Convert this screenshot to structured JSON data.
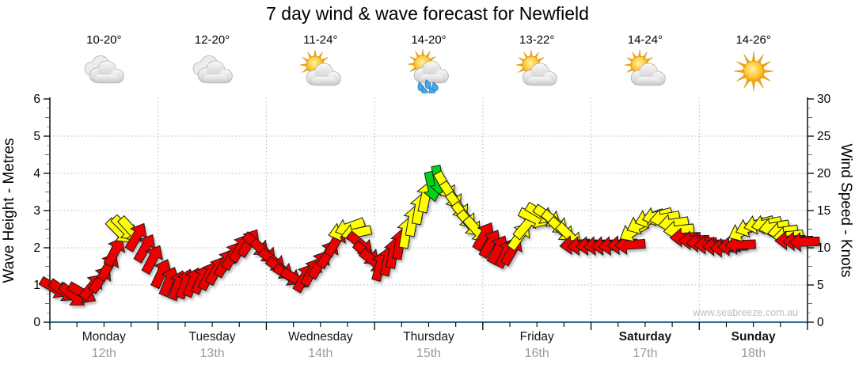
{
  "title": "7 day wind & wave forecast for Newfield",
  "watermark": "www.seabreeze.com.au",
  "days": [
    {
      "name": "Monday",
      "date": "12th",
      "temp": "10-20°",
      "icon": "cloudy",
      "bold": false
    },
    {
      "name": "Tuesday",
      "date": "13th",
      "temp": "12-20°",
      "icon": "cloudy",
      "bold": false
    },
    {
      "name": "Wednesday",
      "date": "14th",
      "temp": "11-24°",
      "icon": "partly-sunny",
      "bold": false
    },
    {
      "name": "Thursday",
      "date": "15th",
      "temp": "14-20°",
      "icon": "partly-sunny-rain",
      "bold": false
    },
    {
      "name": "Friday",
      "date": "16th",
      "temp": "13-22°",
      "icon": "partly-sunny",
      "bold": false
    },
    {
      "name": "Saturday",
      "date": "17th",
      "temp": "14-24°",
      "icon": "partly-sunny",
      "bold": true
    },
    {
      "name": "Sunday",
      "date": "18th",
      "temp": "14-26°",
      "icon": "sunny",
      "bold": true
    }
  ],
  "chart_data": {
    "type": "wind-arrow-forecast",
    "title": "7 day wind & wave forecast for Newfield",
    "categories": [
      "Monday 12th",
      "Tuesday 13th",
      "Wednesday 14th",
      "Thursday 15th",
      "Friday 16th",
      "Saturday 17th",
      "Sunday 18th"
    ],
    "y_left": {
      "label": "Wave Height - Metres",
      "min": 0,
      "max": 6,
      "ticks": [
        0,
        1,
        2,
        3,
        4,
        5,
        6
      ]
    },
    "y_right": {
      "label": "Wind Speed - Knots",
      "min": 0,
      "max": 30,
      "ticks": [
        0,
        5,
        10,
        15,
        20,
        25,
        30
      ]
    },
    "grid": true,
    "colors": {
      "red": "#ec0000",
      "yellow": "#ffff00",
      "green": "#00d414",
      "axis_baseline": "#2d6b8f",
      "gridline": "#b3b3b3",
      "connector": "#9a9a9a"
    },
    "arrows_columns": [
      "day_position_0to7",
      "knots",
      "direction_deg_0isEast_cw",
      "color"
    ],
    "arrows": [
      [
        0.04,
        4.6,
        30,
        "red"
      ],
      [
        0.12,
        4.2,
        35,
        "red"
      ],
      [
        0.21,
        3.6,
        40,
        "red"
      ],
      [
        0.3,
        3.9,
        30,
        "red"
      ],
      [
        0.39,
        4.8,
        -50,
        "red"
      ],
      [
        0.47,
        5.8,
        -55,
        "red"
      ],
      [
        0.54,
        7.5,
        -60,
        "red"
      ],
      [
        0.6,
        9.5,
        -62,
        "red"
      ],
      [
        0.64,
        12.2,
        45,
        "yellow"
      ],
      [
        0.69,
        12.6,
        45,
        "yellow"
      ],
      [
        0.75,
        12.4,
        48,
        "yellow"
      ],
      [
        0.8,
        11.5,
        -60,
        "red"
      ],
      [
        0.88,
        10.0,
        -60,
        "red"
      ],
      [
        0.95,
        8.5,
        -62,
        "red"
      ],
      [
        1.03,
        6.6,
        -65,
        "red"
      ],
      [
        1.1,
        5.5,
        -68,
        "red"
      ],
      [
        1.18,
        5.0,
        -70,
        "red"
      ],
      [
        1.25,
        5.2,
        -70,
        "red"
      ],
      [
        1.32,
        5.4,
        -68,
        "red"
      ],
      [
        1.4,
        5.8,
        -65,
        "red"
      ],
      [
        1.47,
        6.3,
        -62,
        "red"
      ],
      [
        1.54,
        7.0,
        -60,
        "red"
      ],
      [
        1.62,
        8.0,
        -60,
        "red"
      ],
      [
        1.69,
        9.0,
        -60,
        "red"
      ],
      [
        1.76,
        10.0,
        -60,
        "red"
      ],
      [
        1.84,
        10.7,
        -58,
        "red"
      ],
      [
        1.91,
        10.4,
        40,
        "red"
      ],
      [
        1.98,
        9.5,
        42,
        "red"
      ],
      [
        2.06,
        8.3,
        38,
        "red"
      ],
      [
        2.13,
        7.2,
        35,
        "red"
      ],
      [
        2.2,
        6.3,
        32,
        "red"
      ],
      [
        2.27,
        5.8,
        30,
        "red"
      ],
      [
        2.35,
        6.0,
        -60,
        "red"
      ],
      [
        2.42,
        6.8,
        -60,
        "red"
      ],
      [
        2.49,
        7.8,
        -60,
        "red"
      ],
      [
        2.57,
        9.2,
        -60,
        "red"
      ],
      [
        2.64,
        10.8,
        -60,
        "red"
      ],
      [
        2.71,
        12.2,
        165,
        "yellow"
      ],
      [
        2.77,
        12.8,
        160,
        "yellow"
      ],
      [
        2.83,
        12.0,
        168,
        "yellow"
      ],
      [
        2.87,
        10.5,
        40,
        "red"
      ],
      [
        2.93,
        9.2,
        40,
        "red"
      ],
      [
        2.99,
        8.2,
        38,
        "red"
      ],
      [
        3.05,
        7.6,
        -75,
        "red"
      ],
      [
        3.12,
        8.3,
        -78,
        "red"
      ],
      [
        3.17,
        9.3,
        -80,
        "red"
      ],
      [
        3.23,
        10.5,
        -80,
        "red"
      ],
      [
        3.29,
        12.0,
        -80,
        "yellow"
      ],
      [
        3.35,
        13.6,
        -80,
        "yellow"
      ],
      [
        3.41,
        15.2,
        -80,
        "yellow"
      ],
      [
        3.47,
        16.8,
        -78,
        "yellow"
      ],
      [
        3.53,
        18.2,
        78,
        "green"
      ],
      [
        3.59,
        19.0,
        80,
        "green"
      ],
      [
        3.65,
        18.3,
        60,
        "yellow"
      ],
      [
        3.71,
        17.0,
        56,
        "yellow"
      ],
      [
        3.77,
        15.6,
        54,
        "yellow"
      ],
      [
        3.83,
        14.3,
        50,
        "yellow"
      ],
      [
        3.88,
        13.2,
        50,
        "yellow"
      ],
      [
        3.94,
        12.4,
        48,
        "yellow"
      ],
      [
        4.01,
        11.6,
        -60,
        "red"
      ],
      [
        4.07,
        10.6,
        -60,
        "red"
      ],
      [
        4.14,
        9.8,
        -62,
        "red"
      ],
      [
        4.21,
        9.3,
        -64,
        "red"
      ],
      [
        4.27,
        9.6,
        -60,
        "red"
      ],
      [
        4.34,
        11.6,
        -55,
        "yellow"
      ],
      [
        4.4,
        13.0,
        -50,
        "yellow"
      ],
      [
        4.47,
        14.0,
        25,
        "yellow"
      ],
      [
        4.53,
        14.6,
        30,
        "yellow"
      ],
      [
        4.6,
        14.2,
        35,
        "yellow"
      ],
      [
        4.67,
        13.4,
        40,
        "yellow"
      ],
      [
        4.73,
        12.4,
        42,
        "yellow"
      ],
      [
        4.8,
        11.6,
        45,
        "yellow"
      ],
      [
        4.85,
        10.4,
        175,
        "red"
      ],
      [
        4.92,
        10.3,
        175,
        "red"
      ],
      [
        5.0,
        10.3,
        175,
        "red"
      ],
      [
        5.07,
        10.3,
        175,
        "red"
      ],
      [
        5.14,
        10.3,
        175,
        "red"
      ],
      [
        5.21,
        10.3,
        175,
        "red"
      ],
      [
        5.29,
        10.4,
        175,
        "red"
      ],
      [
        5.36,
        10.4,
        176,
        "red"
      ],
      [
        5.39,
        12.2,
        150,
        "yellow"
      ],
      [
        5.46,
        13.2,
        155,
        "yellow"
      ],
      [
        5.54,
        14.0,
        160,
        "yellow"
      ],
      [
        5.61,
        14.3,
        165,
        "yellow"
      ],
      [
        5.68,
        14.0,
        170,
        "yellow"
      ],
      [
        5.76,
        13.3,
        172,
        "yellow"
      ],
      [
        5.81,
        12.4,
        174,
        "yellow"
      ],
      [
        5.87,
        11.4,
        178,
        "red"
      ],
      [
        5.95,
        11.0,
        178,
        "red"
      ],
      [
        6.02,
        10.7,
        178,
        "red"
      ],
      [
        6.09,
        10.4,
        178,
        "red"
      ],
      [
        6.17,
        10.2,
        179,
        "red"
      ],
      [
        6.24,
        10.0,
        179,
        "red"
      ],
      [
        6.31,
        10.2,
        178,
        "red"
      ],
      [
        6.38,
        10.4,
        178,
        "red"
      ],
      [
        6.4,
        12.2,
        155,
        "yellow"
      ],
      [
        6.47,
        12.8,
        160,
        "yellow"
      ],
      [
        6.55,
        13.2,
        165,
        "yellow"
      ],
      [
        6.62,
        13.2,
        168,
        "yellow"
      ],
      [
        6.69,
        12.8,
        170,
        "yellow"
      ],
      [
        6.77,
        12.2,
        172,
        "yellow"
      ],
      [
        6.82,
        11.6,
        174,
        "yellow"
      ],
      [
        6.84,
        11.0,
        178,
        "red"
      ],
      [
        6.91,
        10.9,
        178,
        "red"
      ],
      [
        6.97,
        10.8,
        178,
        "red"
      ]
    ]
  }
}
